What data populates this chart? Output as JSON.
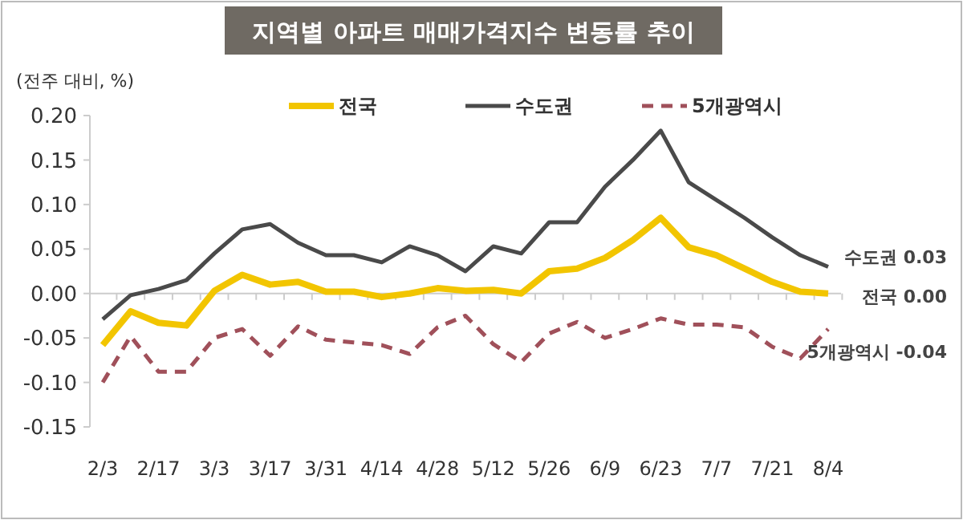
{
  "chart_data": {
    "type": "line",
    "title": "지역별 아파트 매매가격지수 변동률 추이",
    "ylabel": "(전주 대비, %)",
    "categories": [
      "2/3",
      null,
      "2/17",
      null,
      "3/3",
      null,
      "3/17",
      null,
      "3/31",
      null,
      "4/14",
      null,
      "4/28",
      null,
      "5/12",
      null,
      "5/26",
      null,
      "6/9",
      null,
      "6/23",
      null,
      "7/7",
      null,
      "7/21",
      null,
      "8/4"
    ],
    "series": [
      {
        "name": "전국",
        "color": "#f2c500",
        "line_style": "solid",
        "values": [
          -0.058,
          -0.02,
          -0.033,
          -0.036,
          0.003,
          0.021,
          0.01,
          0.013,
          0.002,
          0.002,
          -0.004,
          0.0,
          0.006,
          0.003,
          0.004,
          0.0,
          0.025,
          0.028,
          0.04,
          0.06,
          0.085,
          0.052,
          0.043,
          0.028,
          0.013,
          0.002,
          0.0
        ]
      },
      {
        "name": "수도권",
        "color": "#4a4a4a",
        "line_style": "solid",
        "values": [
          -0.029,
          -0.002,
          0.005,
          0.015,
          0.045,
          0.072,
          0.078,
          0.057,
          0.043,
          0.043,
          0.035,
          0.053,
          0.043,
          0.025,
          0.053,
          0.045,
          0.08,
          0.08,
          0.12,
          0.15,
          0.183,
          0.125,
          0.105,
          0.085,
          0.063,
          0.043,
          0.03
        ]
      },
      {
        "name": "5개광역시",
        "color": "#a0505a",
        "line_style": "dashed",
        "values": [
          -0.1,
          -0.048,
          -0.088,
          -0.088,
          -0.05,
          -0.04,
          -0.07,
          -0.037,
          -0.052,
          -0.055,
          -0.058,
          -0.068,
          -0.038,
          -0.025,
          -0.057,
          -0.077,
          -0.045,
          -0.032,
          -0.05,
          -0.04,
          -0.028,
          -0.035,
          -0.035,
          -0.038,
          -0.06,
          -0.073,
          -0.04
        ]
      }
    ],
    "ylim": [
      -0.15,
      0.2
    ],
    "yticks": [
      {
        "value": -0.15,
        "label": "-0.15"
      },
      {
        "value": -0.1,
        "label": "-0.10"
      },
      {
        "value": -0.05,
        "label": "-0.05"
      },
      {
        "value": 0,
        "label": "0.00"
      },
      {
        "value": 0.05,
        "label": "0.05"
      },
      {
        "value": 0.1,
        "label": "0.10"
      },
      {
        "value": 0.15,
        "label": "0.15"
      },
      {
        "value": 0.2,
        "label": "0.20"
      }
    ],
    "legend": "top",
    "marker": "none",
    "annotations": [
      {
        "text": "수도권 0.03",
        "x": "8/4",
        "y": 0.03
      },
      {
        "text": "전국 0.00",
        "x": "8/4",
        "y": 0.0
      },
      {
        "text": "5개광역시 -0.04",
        "x": "8/4",
        "y": -0.04
      }
    ]
  }
}
